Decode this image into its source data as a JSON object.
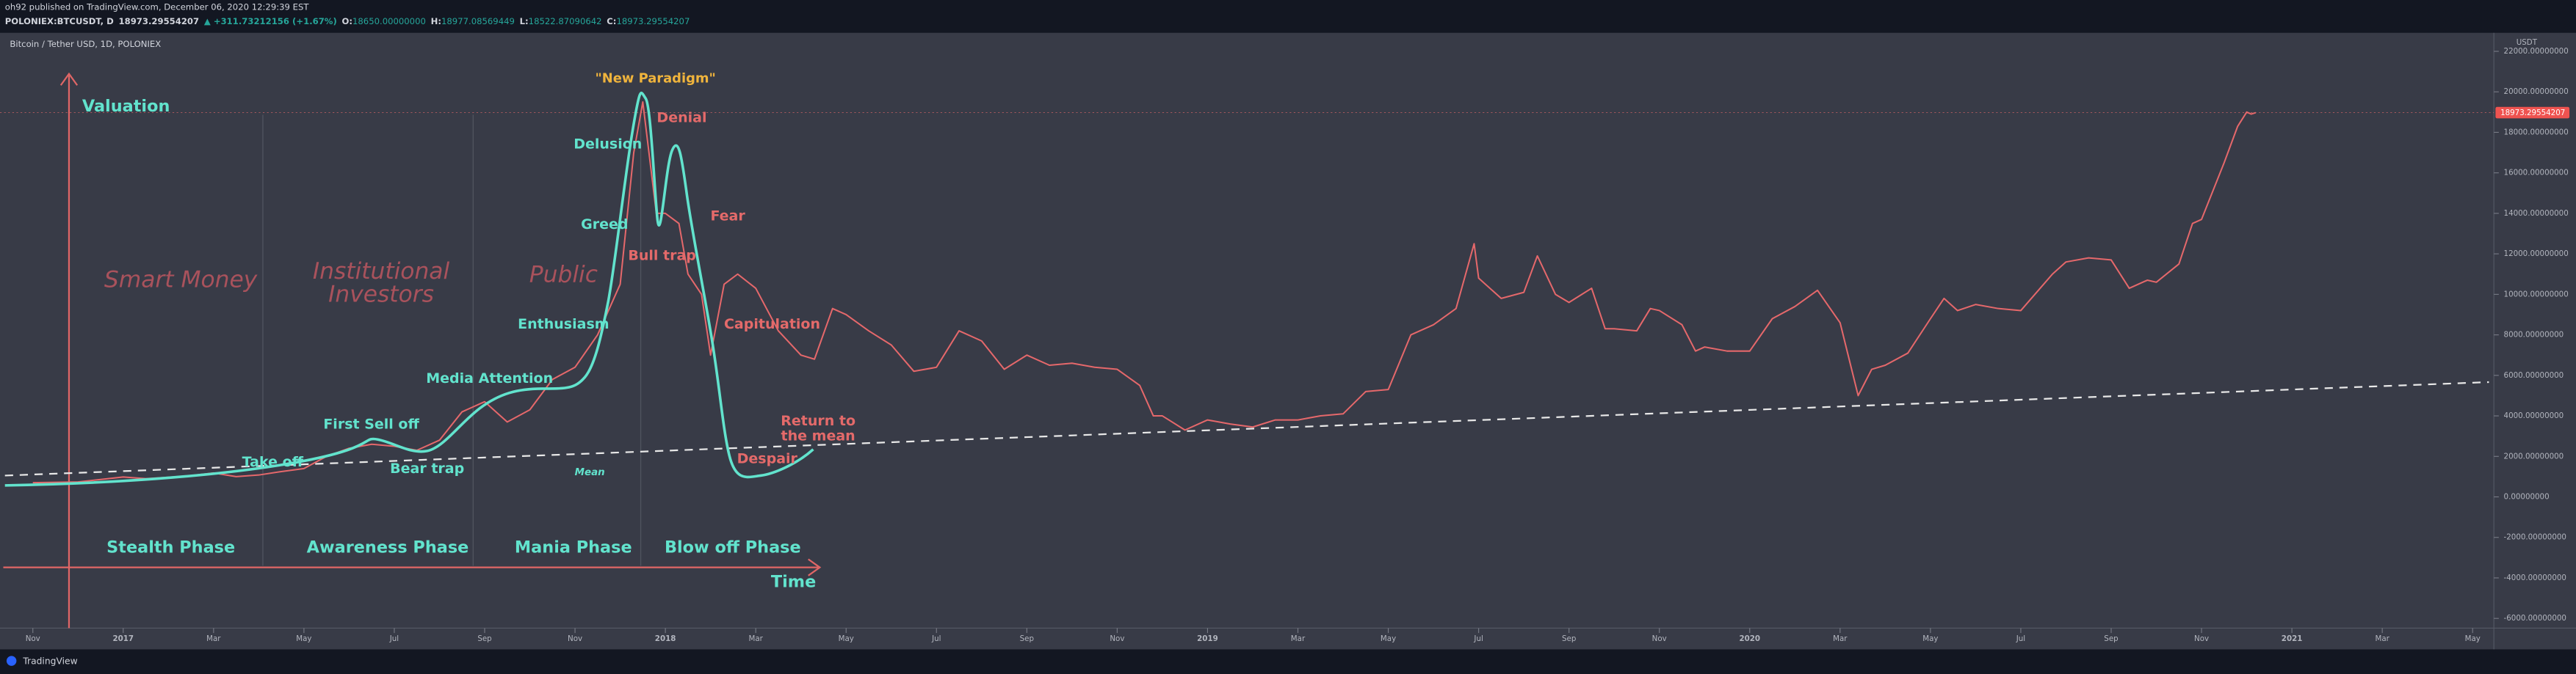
{
  "header": {
    "published": "oh92 published on TradingView.com, December 06, 2020 12:29:39 EST",
    "symbol": "POLONIEX:BTCUSDT, D",
    "change": "▲ +311.73212156 (+1.67%)",
    "ohlc": [
      {
        "label": "O:",
        "value": "18650.00000000"
      },
      {
        "label": "H:",
        "value": "18977.08569449"
      },
      {
        "label": "L:",
        "value": "18522.87090642"
      },
      {
        "label": "C:",
        "value": "18973.29554207"
      }
    ]
  },
  "chart_data": {
    "type": "line",
    "title": "Bitcoin / Tether USD, 1D, POLONIEX",
    "y_unit": "USDT",
    "last_price": 18973.29554207,
    "series": [
      {
        "color": "#e5686b",
        "x": [
          0,
          1,
          2,
          2.5,
          3,
          3.5,
          4,
          4.5,
          5,
          5.5,
          6,
          6.5,
          7,
          7.5,
          8,
          8.5,
          9,
          9.5,
          10,
          10.5,
          11,
          11.5,
          12,
          12.5,
          13,
          13.3,
          13.5,
          13.8,
          14,
          14.3,
          14.5,
          14.8,
          15,
          15.3,
          15.6,
          16,
          16.5,
          17,
          17.3,
          17.7,
          18,
          18.5,
          19,
          19.5,
          20,
          20.5,
          21,
          21.5,
          22,
          22.5,
          23,
          23.5,
          24,
          24.5,
          24.8,
          25,
          25.5,
          26,
          26.5,
          27,
          27.5,
          28,
          28.5,
          29,
          29.5,
          30,
          30.5,
          31,
          31.5,
          31.9,
          32,
          32.5,
          33,
          33.3,
          33.7,
          34,
          34.5,
          34.8,
          35,
          35.5,
          35.8,
          36,
          36.5,
          36.8,
          37,
          37.5,
          38,
          38.5,
          39,
          39.5,
          40,
          40.4,
          40.7,
          41,
          41.5,
          42,
          42.3,
          42.6,
          43,
          43.5,
          44,
          44.7,
          45,
          45.5,
          46,
          46.4,
          46.8,
          47,
          47.5,
          47.8,
          48,
          48.5,
          48.8,
          49,
          49.1,
          49.2
        ],
        "values": [
          700,
          740,
          980,
          900,
          970,
          1050,
          1180,
          1000,
          1080,
          1250,
          1400,
          2000,
          2400,
          2600,
          2500,
          2300,
          2800,
          4200,
          4700,
          3700,
          4300,
          5800,
          6400,
          8000,
          10500,
          17000,
          19500,
          14000,
          14000,
          13500,
          11000,
          10000,
          7000,
          10500,
          11000,
          10300,
          8200,
          7000,
          6800,
          9300,
          9000,
          8200,
          7500,
          6200,
          6400,
          8200,
          7700,
          6300,
          7000,
          6500,
          6600,
          6400,
          6300,
          5500,
          4000,
          4000,
          3300,
          3800,
          3600,
          3450,
          3800,
          3800,
          4000,
          4100,
          5200,
          5300,
          8000,
          8500,
          9300,
          12500,
          10800,
          9800,
          10100,
          11900,
          10000,
          9600,
          10300,
          8300,
          8300,
          8200,
          9300,
          9200,
          8500,
          7200,
          7400,
          7200,
          7200,
          8800,
          9400,
          10200,
          8600,
          5000,
          6300,
          6500,
          7100,
          8800,
          9800,
          9200,
          9500,
          9300,
          9200,
          11000,
          11600,
          11800,
          11700,
          10300,
          10700,
          10600,
          11500,
          13500,
          13700,
          16500,
          18300,
          19000,
          18900,
          18973.29554207
        ]
      }
    ],
    "xlim": [
      -0.727,
      54.47
    ],
    "xticks": [
      {
        "value": 0,
        "label": "Nov"
      },
      {
        "value": 2,
        "label": "2017"
      },
      {
        "value": 4,
        "label": "Mar"
      },
      {
        "value": 6,
        "label": "May"
      },
      {
        "value": 8,
        "label": "Jul"
      },
      {
        "value": 10,
        "label": "Sep"
      },
      {
        "value": 12,
        "label": "Nov"
      },
      {
        "value": 14,
        "label": "2018"
      },
      {
        "value": 16,
        "label": "Mar"
      },
      {
        "value": 18,
        "label": "May"
      },
      {
        "value": 20,
        "label": "Jul"
      },
      {
        "value": 22,
        "label": "Sep"
      },
      {
        "value": 24,
        "label": "Nov"
      },
      {
        "value": 26,
        "label": "2019"
      },
      {
        "value": 28,
        "label": "Mar"
      },
      {
        "value": 30,
        "label": "May"
      },
      {
        "value": 32,
        "label": "Jul"
      },
      {
        "value": 34,
        "label": "Sep"
      },
      {
        "value": 36,
        "label": "Nov"
      },
      {
        "value": 38,
        "label": "2020"
      },
      {
        "value": 40,
        "label": "Mar"
      },
      {
        "value": 42,
        "label": "May"
      },
      {
        "value": 44,
        "label": "Jul"
      },
      {
        "value": 46,
        "label": "Sep"
      },
      {
        "value": 48,
        "label": "Nov"
      },
      {
        "value": 50,
        "label": "2021"
      },
      {
        "value": 52,
        "label": "Mar"
      },
      {
        "value": 54,
        "label": "May"
      }
    ],
    "ylim": [
      -6478,
      22915
    ],
    "yticks": [
      {
        "value": -6000,
        "label": "-6000.00000000"
      },
      {
        "value": -4000,
        "label": "-4000.00000000"
      },
      {
        "value": -2000,
        "label": "-2000.00000000"
      },
      {
        "value": 0,
        "label": "0.00000000"
      },
      {
        "value": 2000,
        "label": "2000.00000000"
      },
      {
        "value": 4000,
        "label": "4000.00000000"
      },
      {
        "value": 6000,
        "label": "6000.00000000"
      },
      {
        "value": 8000,
        "label": "8000.00000000"
      },
      {
        "value": 10000,
        "label": "10000.00000000"
      },
      {
        "value": 12000,
        "label": "12000.00000000"
      },
      {
        "value": 14000,
        "label": "14000.00000000"
      },
      {
        "value": 16000,
        "label": "16000.00000000"
      },
      {
        "value": 18000,
        "label": "18000.00000000"
      },
      {
        "value": 20000,
        "label": "20000.00000000"
      },
      {
        "value": 22000,
        "label": "22000.00000000"
      }
    ],
    "annotations": [
      "Valuation",
      "Smart Money",
      "Institutional",
      "Investors",
      "Public",
      "\"New Paradigm\"",
      "Denial",
      "Delusion",
      "Greed",
      "Fear",
      "Bull trap",
      "Enthusiasm",
      "Capitulation",
      "Media Attention",
      "First Sell off",
      "Return to",
      "the mean",
      "Take off",
      "Bear trap",
      "Despair",
      "Mean",
      "Stealth Phase",
      "Awareness Phase",
      "Mania Phase",
      "Blow off Phase",
      "Time"
    ]
  },
  "footer": "TradingView"
}
